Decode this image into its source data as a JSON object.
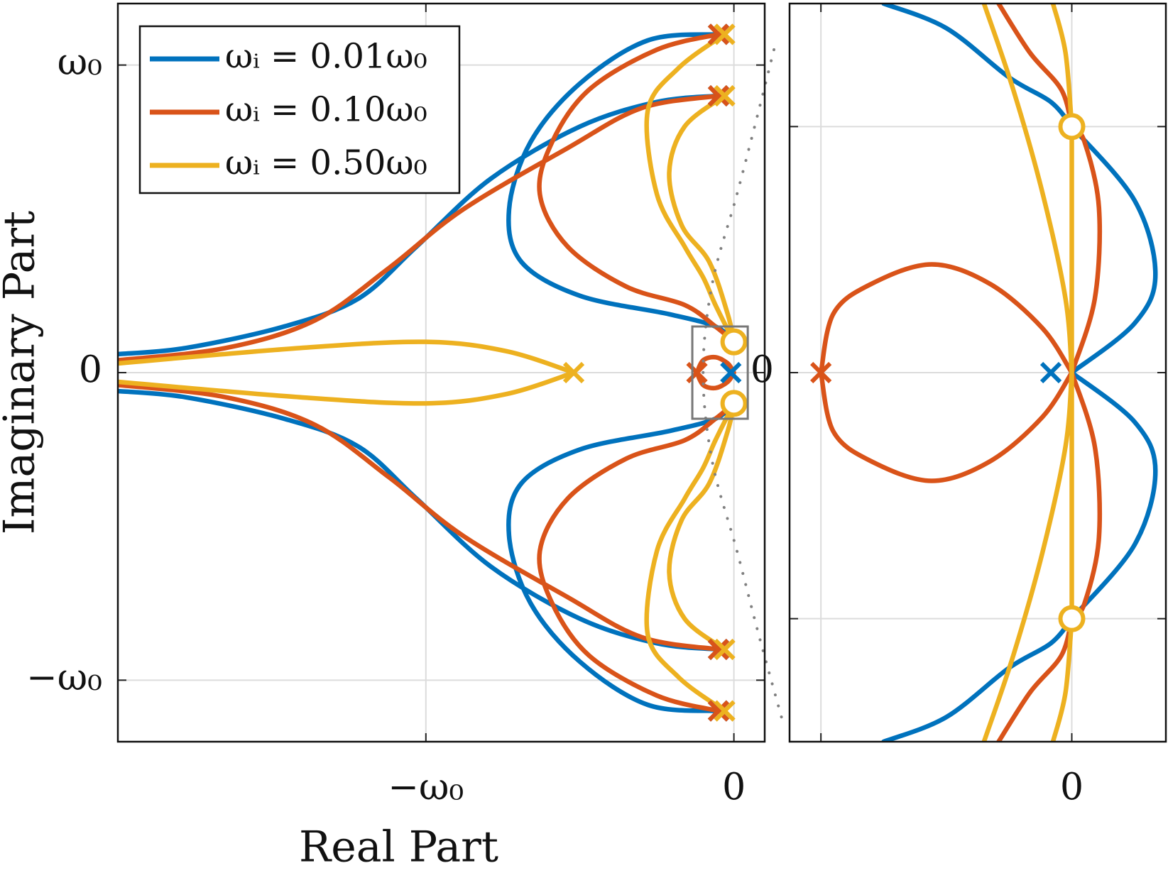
{
  "chart_data": [
    {
      "type": "rootlocus",
      "xlabel": "Real Part",
      "ylabel": "Imaginary Part",
      "legend": "upper left",
      "grid": true,
      "xlim": [
        -2,
        0.1
      ],
      "ylim": [
        -1.2,
        1.2
      ],
      "xticks": [
        {
          "value": -1,
          "label": "−ω₀"
        },
        0
      ],
      "yticks": [
        {
          "value": -1,
          "label": "−ω₀"
        },
        0,
        {
          "value": 1,
          "label": "ω₀"
        }
      ],
      "series": [
        {
          "name": "ωᵢ = 0.01ω₀",
          "color": "#0072BD",
          "x": [
            -0.05,
            -0.28,
            -0.5,
            -0.66,
            -0.73,
            -0.69,
            -0.5,
            -0.21,
            -0.06,
            0,
            null,
            -0.05,
            -0.25,
            -0.5,
            -0.79,
            -1.03,
            -1.22,
            -1.46,
            -1.78,
            -2,
            null,
            -0.05,
            -0.28,
            -0.5,
            -0.66,
            -0.73,
            -0.69,
            -0.5,
            -0.21,
            -0.06,
            0,
            null,
            -0.05,
            -0.25,
            -0.5,
            -0.79,
            -1.03,
            -1.22,
            -1.46,
            -1.78,
            -2
          ],
          "values": [
            1.1,
            1.08,
            0.94,
            0.75,
            0.53,
            0.36,
            0.25,
            0.19,
            0.15,
            0.1,
            null,
            0.9,
            0.88,
            0.8,
            0.63,
            0.41,
            0.24,
            0.15,
            0.08,
            0.06,
            null,
            -1.1,
            -1.08,
            -0.94,
            -0.75,
            -0.53,
            -0.36,
            -0.25,
            -0.19,
            -0.15,
            -0.1,
            null,
            -0.9,
            -0.88,
            -0.8,
            -0.63,
            -0.41,
            -0.24,
            -0.15,
            -0.08,
            -0.06
          ],
          "poles": {
            "x": [
              -0.05,
              -0.05,
              -0.05,
              -0.05,
              -0.01
            ],
            "y": [
              1.1,
              0.9,
              -0.9,
              -1.1,
              0
            ]
          }
        },
        {
          "name": "ωᵢ = 0.10ω₀",
          "color": "#D95319",
          "x": [
            -0.05,
            -0.25,
            -0.47,
            -0.59,
            -0.63,
            -0.54,
            -0.35,
            -0.16,
            -0.06,
            0,
            null,
            -0.05,
            -0.3,
            -0.54,
            -0.88,
            -1.12,
            -1.36,
            -1.65,
            -2,
            null,
            -0.05,
            -0.25,
            -0.47,
            -0.59,
            -0.63,
            -0.54,
            -0.35,
            -0.16,
            -0.06,
            0,
            null,
            -0.05,
            -0.3,
            -0.54,
            -0.88,
            -1.12,
            -1.36,
            -1.65,
            -2,
            null,
            -0.12,
            -0.1,
            -0.06,
            -0.02,
            0,
            null,
            -0.12,
            -0.1,
            -0.06,
            -0.02,
            0
          ],
          "values": [
            1.1,
            1.05,
            0.92,
            0.75,
            0.58,
            0.41,
            0.28,
            0.22,
            0.15,
            0.1,
            null,
            0.9,
            0.86,
            0.73,
            0.53,
            0.34,
            0.17,
            0.08,
            0.04,
            null,
            -1.1,
            -1.05,
            -0.92,
            -0.75,
            -0.58,
            -0.41,
            -0.28,
            -0.22,
            -0.15,
            -0.1,
            null,
            -0.9,
            -0.86,
            -0.73,
            -0.53,
            -0.34,
            -0.17,
            -0.08,
            -0.04,
            null,
            0,
            0.04,
            0.05,
            0.03,
            0,
            null,
            0,
            -0.04,
            -0.05,
            -0.03,
            0
          ],
          "poles": {
            "x": [
              -0.05,
              -0.05,
              -0.05,
              -0.05,
              -0.12
            ],
            "y": [
              1.1,
              0.9,
              -0.9,
              -1.1,
              0
            ]
          }
        },
        {
          "name": "ωᵢ = 0.50ω₀",
          "color": "#EDB120",
          "x": [
            -0.03,
            -0.18,
            -0.28,
            -0.25,
            -0.16,
            -0.1,
            -0.06,
            0,
            null,
            -0.03,
            -0.16,
            -0.21,
            -0.17,
            -0.08,
            -0.02,
            0,
            null,
            -0.52,
            -0.74,
            -1,
            -1.41,
            -2,
            null,
            -0.03,
            -0.18,
            -0.28,
            -0.25,
            -0.16,
            -0.1,
            -0.06,
            0,
            null,
            -0.03,
            -0.16,
            -0.21,
            -0.17,
            -0.08,
            -0.02,
            0,
            null,
            -0.52,
            -0.74,
            -1,
            -1.41,
            -2
          ],
          "values": [
            1.1,
            0.99,
            0.85,
            0.58,
            0.41,
            0.31,
            0.22,
            0.1,
            null,
            0.9,
            0.8,
            0.65,
            0.48,
            0.36,
            0.19,
            0.1,
            null,
            0,
            0.07,
            0.1,
            0.08,
            0.03,
            null,
            -1.1,
            -0.99,
            -0.85,
            -0.58,
            -0.41,
            -0.31,
            -0.22,
            -0.1,
            null,
            -0.9,
            -0.8,
            -0.65,
            -0.48,
            -0.36,
            -0.19,
            -0.1,
            null,
            0,
            -0.07,
            -0.1,
            -0.08,
            -0.03
          ],
          "poles": {
            "x": [
              -0.03,
              -0.03,
              -0.03,
              -0.03,
              -0.52
            ],
            "y": [
              1.1,
              0.9,
              -0.9,
              -1.1,
              0
            ]
          },
          "zeros": {
            "x": [
              0,
              0
            ],
            "y": [
              0.1,
              -0.1
            ]
          }
        },
        {
          "color": "#808080",
          "style": "dotted",
          "x": [
            0.13,
            0.08,
            0.01,
            -0.07,
            -0.1,
            -0.07,
            0.01,
            0.08,
            0.16
          ],
          "values": [
            1.05,
            0.85,
            0.58,
            0.29,
            0,
            -0.29,
            -0.58,
            -0.85,
            -1.14
          ]
        }
      ]
    },
    {
      "type": "rootlocus",
      "grid": true,
      "xlim": [
        -0.135,
        0.045
      ],
      "ylim": [
        -0.15,
        0.15
      ],
      "xticks": [
        {
          "value": -0.12,
          "label": null
        },
        0
      ],
      "yticks": [
        {
          "value": -0.1,
          "label": null
        },
        0,
        {
          "value": 0.1,
          "label": null
        }
      ],
      "series": [
        {
          "color": "#0072BD",
          "x": [
            -0.09,
            -0.06,
            -0.03,
            -0.01,
            0,
            null,
            0,
            0.03,
            0.04,
            0.03,
            0,
            null,
            -0.09,
            -0.06,
            -0.03,
            -0.01,
            0,
            null,
            0,
            0.03,
            0.04,
            0.03,
            0
          ],
          "values": [
            0.15,
            0.14,
            0.12,
            0.11,
            0.1,
            null,
            0,
            0.02,
            0.04,
            0.07,
            0.1,
            null,
            -0.15,
            -0.14,
            -0.12,
            -0.11,
            -0.1,
            null,
            0,
            -0.02,
            -0.04,
            -0.07,
            -0.1
          ],
          "poles": {
            "x": [
              -0.01
            ],
            "y": [
              0
            ]
          }
        },
        {
          "color": "#D95319",
          "x": [
            -0.035,
            -0.02,
            -0.005,
            0,
            null,
            0,
            0.011,
            0.013,
            0.006,
            0,
            null,
            -0.12,
            -0.114,
            -0.096,
            -0.067,
            -0.039,
            -0.014,
            0,
            null,
            -0.035,
            -0.02,
            -0.005,
            0,
            null,
            0,
            0.011,
            0.013,
            0.006,
            0,
            null,
            -0.12,
            -0.114,
            -0.096,
            -0.067,
            -0.039,
            -0.014,
            0
          ],
          "values": [
            0.15,
            0.13,
            0.115,
            0.1,
            null,
            0,
            0.03,
            0.067,
            0.094,
            0.1,
            null,
            0,
            0.024,
            0.036,
            0.044,
            0.036,
            0.018,
            0,
            null,
            -0.15,
            -0.13,
            -0.115,
            -0.1,
            null,
            0,
            -0.03,
            -0.067,
            -0.094,
            -0.1,
            null,
            0,
            -0.024,
            -0.036,
            -0.044,
            -0.036,
            -0.018,
            0
          ],
          "poles": {
            "x": [
              -0.12
            ],
            "y": [
              0
            ]
          }
        },
        {
          "color": "#EDB120",
          "x": [
            -0.042,
            -0.028,
            -0.014,
            -0.003,
            0,
            null,
            -0.009,
            -0.003,
            0,
            null,
            0,
            0,
            0,
            null,
            -0.042,
            -0.028,
            -0.014,
            -0.003,
            0,
            null,
            -0.009,
            -0.003,
            0,
            null,
            0,
            0,
            0
          ],
          "values": [
            0.15,
            0.115,
            0.073,
            0.03,
            0,
            null,
            0.15,
            0.13,
            0.1,
            null,
            0,
            0.045,
            0.1,
            null,
            -0.15,
            -0.115,
            -0.073,
            -0.03,
            0,
            null,
            -0.15,
            -0.13,
            -0.1,
            null,
            0,
            -0.045,
            -0.1
          ],
          "zeros": {
            "x": [
              0,
              0
            ],
            "y": [
              0.1,
              -0.1
            ]
          }
        }
      ]
    }
  ]
}
